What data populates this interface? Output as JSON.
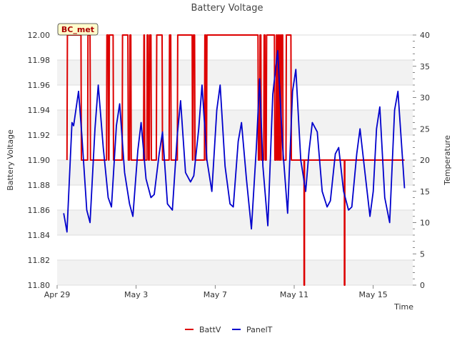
{
  "chart_data": {
    "type": "line",
    "title": "Battery Voltage",
    "xlabel": "Time",
    "ylabel": "Battery Voltage",
    "y2label": "Temperature",
    "site_tag": "BC_met",
    "x_axis": {
      "type": "date",
      "range": [
        "2024-04-29",
        "2024-05-17T00:00"
      ],
      "ticks": [
        {
          "value": "2024-04-29",
          "label": "Apr 29"
        },
        {
          "value": "2024-05-03",
          "label": "May 3"
        },
        {
          "value": "2024-05-07",
          "label": "May 7"
        },
        {
          "value": "2024-05-11",
          "label": "May 11"
        },
        {
          "value": "2024-05-15",
          "label": "May 15"
        }
      ]
    },
    "y_axis": {
      "range": [
        11.8,
        12.0
      ],
      "ticks": [
        "11.80",
        "11.82",
        "11.84",
        "11.86",
        "11.88",
        "11.90",
        "11.92",
        "11.94",
        "11.96",
        "11.98",
        "12.00"
      ]
    },
    "y2_axis": {
      "range": [
        0,
        40
      ],
      "ticks": [
        "0",
        "5",
        "10",
        "15",
        "20",
        "25",
        "30",
        "35",
        "40"
      ]
    },
    "grid": true,
    "legend": {
      "placement": "bottom-center"
    },
    "series": [
      {
        "name": "BattV",
        "axis": "left",
        "color": "#dd0000",
        "points": [
          [
            "2024-04-29T12:00",
            11.9
          ],
          [
            "2024-04-29T12:30",
            12.0
          ],
          [
            "2024-04-30T05:00",
            12.0
          ],
          [
            "2024-04-30T05:30",
            11.9
          ],
          [
            "2024-04-30T13:00",
            11.9
          ],
          [
            "2024-04-30T13:30",
            12.0
          ],
          [
            "2024-04-30T16:00",
            12.0
          ],
          [
            "2024-04-30T16:30",
            11.9
          ],
          [
            "2024-05-01T12:00",
            11.9
          ],
          [
            "2024-05-01T12:30",
            12.0
          ],
          [
            "2024-05-01T14:00",
            12.0
          ],
          [
            "2024-05-01T14:30",
            11.9
          ],
          [
            "2024-05-01T15:00",
            11.9
          ],
          [
            "2024-05-01T15:30",
            12.0
          ],
          [
            "2024-05-01T20:00",
            12.0
          ],
          [
            "2024-05-01T20:30",
            11.9
          ],
          [
            "2024-05-02T07:00",
            11.9
          ],
          [
            "2024-05-02T07:30",
            12.0
          ],
          [
            "2024-05-02T14:00",
            12.0
          ],
          [
            "2024-05-02T14:30",
            11.9
          ],
          [
            "2024-05-02T16:00",
            11.9
          ],
          [
            "2024-05-02T16:30",
            12.0
          ],
          [
            "2024-05-02T17:30",
            12.0
          ],
          [
            "2024-05-02T18:00",
            11.9
          ],
          [
            "2024-05-03T09:00",
            11.9
          ],
          [
            "2024-05-03T09:30",
            12.0
          ],
          [
            "2024-05-03T10:00",
            12.0
          ],
          [
            "2024-05-03T10:30",
            11.9
          ],
          [
            "2024-05-03T13:00",
            11.9
          ],
          [
            "2024-05-03T13:30",
            12.0
          ],
          [
            "2024-05-03T14:30",
            12.0
          ],
          [
            "2024-05-03T15:00",
            11.9
          ],
          [
            "2024-05-03T16:00",
            11.9
          ],
          [
            "2024-05-03T16:30",
            12.0
          ],
          [
            "2024-05-03T18:00",
            12.0
          ],
          [
            "2024-05-03T18:30",
            11.9
          ],
          [
            "2024-05-04T00:30",
            11.9
          ],
          [
            "2024-05-04T01:00",
            12.0
          ],
          [
            "2024-05-04T07:30",
            12.0
          ],
          [
            "2024-05-04T08:00",
            11.9
          ],
          [
            "2024-05-04T16:00",
            11.9
          ],
          [
            "2024-05-04T16:30",
            12.0
          ],
          [
            "2024-05-04T18:00",
            12.0
          ],
          [
            "2024-05-04T18:30",
            11.9
          ],
          [
            "2024-05-05T02:00",
            11.9
          ],
          [
            "2024-05-05T02:30",
            12.0
          ],
          [
            "2024-05-05T20:00",
            12.0
          ],
          [
            "2024-05-05T20:30",
            11.9
          ],
          [
            "2024-05-05T21:00",
            11.9
          ],
          [
            "2024-05-05T21:30",
            12.0
          ],
          [
            "2024-05-05T23:00",
            12.0
          ],
          [
            "2024-05-05T23:30",
            11.9
          ],
          [
            "2024-05-06T11:00",
            11.9
          ],
          [
            "2024-05-06T11:30",
            12.0
          ],
          [
            "2024-05-06T12:30",
            12.0
          ],
          [
            "2024-05-06T13:00",
            11.9
          ],
          [
            "2024-05-06T13:30",
            11.9
          ],
          [
            "2024-05-06T14:00",
            12.0
          ],
          [
            "2024-05-09T04:00",
            12.0
          ],
          [
            "2024-05-09T04:30",
            11.9
          ],
          [
            "2024-05-09T06:00",
            11.9
          ],
          [
            "2024-05-09T06:30",
            12.0
          ],
          [
            "2024-05-09T07:30",
            12.0
          ],
          [
            "2024-05-09T08:00",
            11.9
          ],
          [
            "2024-05-09T11:00",
            11.9
          ],
          [
            "2024-05-09T11:30",
            12.0
          ],
          [
            "2024-05-09T12:30",
            12.0
          ],
          [
            "2024-05-09T13:00",
            11.9
          ],
          [
            "2024-05-09T14:00",
            11.9
          ],
          [
            "2024-05-09T14:30",
            12.0
          ],
          [
            "2024-05-10T00:00",
            12.0
          ],
          [
            "2024-05-10T00:30",
            11.9
          ],
          [
            "2024-05-10T02:00",
            11.9
          ],
          [
            "2024-05-10T02:30",
            12.0
          ],
          [
            "2024-05-10T03:00",
            12.0
          ],
          [
            "2024-05-10T03:30",
            11.9
          ],
          [
            "2024-05-10T04:00",
            11.9
          ],
          [
            "2024-05-10T04:30",
            12.0
          ],
          [
            "2024-05-10T05:00",
            12.0
          ],
          [
            "2024-05-10T05:30",
            11.9
          ],
          [
            "2024-05-10T06:00",
            11.9
          ],
          [
            "2024-05-10T06:30",
            12.0
          ],
          [
            "2024-05-10T07:00",
            12.0
          ],
          [
            "2024-05-10T07:30",
            11.9
          ],
          [
            "2024-05-10T08:00",
            11.9
          ],
          [
            "2024-05-10T08:30",
            12.0
          ],
          [
            "2024-05-10T10:00",
            12.0
          ],
          [
            "2024-05-10T10:30",
            11.9
          ],
          [
            "2024-05-10T14:00",
            11.9
          ],
          [
            "2024-05-10T14:30",
            12.0
          ],
          [
            "2024-05-10T20:00",
            12.0
          ],
          [
            "2024-05-10T20:30",
            11.9
          ],
          [
            "2024-05-11T12:00",
            11.9
          ],
          [
            "2024-05-11T12:00",
            11.8
          ],
          [
            "2024-05-11T12:30",
            11.8
          ],
          [
            "2024-05-11T12:30",
            11.9
          ],
          [
            "2024-05-13T13:00",
            11.9
          ],
          [
            "2024-05-13T13:00",
            11.8
          ],
          [
            "2024-05-13T13:30",
            11.8
          ],
          [
            "2024-05-13T13:30",
            11.9
          ],
          [
            "2024-05-16T14:00",
            11.9
          ]
        ]
      },
      {
        "name": "PanelT",
        "axis": "right",
        "color": "#0000cc",
        "points": [
          [
            "2024-04-29T08:00",
            11.5
          ],
          [
            "2024-04-29T12:00",
            8.5
          ],
          [
            "2024-04-29T18:00",
            26
          ],
          [
            "2024-04-29T20:00",
            25.5
          ],
          [
            "2024-04-30T02:00",
            31
          ],
          [
            "2024-04-30T06:00",
            24
          ],
          [
            "2024-04-30T12:00",
            12
          ],
          [
            "2024-04-30T16:00",
            10
          ],
          [
            "2024-04-30T22:00",
            25
          ],
          [
            "2024-05-01T02:00",
            32
          ],
          [
            "2024-05-01T08:00",
            22
          ],
          [
            "2024-05-01T14:00",
            14
          ],
          [
            "2024-05-01T18:00",
            12.5
          ],
          [
            "2024-05-02T00:00",
            25.5
          ],
          [
            "2024-05-02T04:00",
            29
          ],
          [
            "2024-05-02T10:00",
            18
          ],
          [
            "2024-05-02T16:00",
            13
          ],
          [
            "2024-05-02T20:00",
            11
          ],
          [
            "2024-05-03T02:00",
            21.5
          ],
          [
            "2024-05-03T06:00",
            26
          ],
          [
            "2024-05-03T12:00",
            17
          ],
          [
            "2024-05-03T18:00",
            14
          ],
          [
            "2024-05-03T22:00",
            14.5
          ],
          [
            "2024-05-04T04:00",
            21
          ],
          [
            "2024-05-04T08:00",
            24.5
          ],
          [
            "2024-05-04T14:00",
            13
          ],
          [
            "2024-05-04T20:00",
            12
          ],
          [
            "2024-05-05T02:00",
            24
          ],
          [
            "2024-05-05T06:00",
            29.5
          ],
          [
            "2024-05-05T12:00",
            18
          ],
          [
            "2024-05-05T18:00",
            16.5
          ],
          [
            "2024-05-05T22:00",
            17.5
          ],
          [
            "2024-05-06T04:00",
            25
          ],
          [
            "2024-05-06T08:00",
            32
          ],
          [
            "2024-05-06T14:00",
            20
          ],
          [
            "2024-05-06T20:00",
            15
          ],
          [
            "2024-05-07T02:00",
            28
          ],
          [
            "2024-05-07T06:00",
            32
          ],
          [
            "2024-05-07T12:00",
            19
          ],
          [
            "2024-05-07T18:00",
            13
          ],
          [
            "2024-05-07T22:00",
            12.5
          ],
          [
            "2024-05-08T04:00",
            23
          ],
          [
            "2024-05-08T08:00",
            26
          ],
          [
            "2024-05-08T14:00",
            17
          ],
          [
            "2024-05-08T20:00",
            9
          ],
          [
            "2024-05-09T02:00",
            22
          ],
          [
            "2024-05-09T06:00",
            33
          ],
          [
            "2024-05-09T10:00",
            19
          ],
          [
            "2024-05-09T16:00",
            9.5
          ],
          [
            "2024-05-09T22:00",
            30.5
          ],
          [
            "2024-05-10T04:00",
            37.5
          ],
          [
            "2024-05-10T10:00",
            22
          ],
          [
            "2024-05-10T16:00",
            11.5
          ],
          [
            "2024-05-10T22:00",
            31
          ],
          [
            "2024-05-11T02:00",
            34.5
          ],
          [
            "2024-05-11T08:00",
            20
          ],
          [
            "2024-05-11T14:00",
            15
          ],
          [
            "2024-05-11T18:00",
            21.5
          ],
          [
            "2024-05-11T22:00",
            26
          ],
          [
            "2024-05-12T04:00",
            24.5
          ],
          [
            "2024-05-12T10:00",
            15
          ],
          [
            "2024-05-12T16:00",
            12.5
          ],
          [
            "2024-05-12T20:00",
            13.5
          ],
          [
            "2024-05-13T02:00",
            21
          ],
          [
            "2024-05-13T06:00",
            22
          ],
          [
            "2024-05-13T12:00",
            15
          ],
          [
            "2024-05-13T18:00",
            12
          ],
          [
            "2024-05-13T22:00",
            12.5
          ],
          [
            "2024-05-14T04:00",
            21
          ],
          [
            "2024-05-14T08:00",
            25
          ],
          [
            "2024-05-14T14:00",
            18
          ],
          [
            "2024-05-14T20:00",
            11
          ],
          [
            "2024-05-15T00:00",
            15
          ],
          [
            "2024-05-15T04:00",
            25
          ],
          [
            "2024-05-15T08:00",
            28.5
          ],
          [
            "2024-05-15T14:00",
            14
          ],
          [
            "2024-05-15T20:00",
            10
          ],
          [
            "2024-05-16T02:00",
            28
          ],
          [
            "2024-05-16T06:00",
            31
          ],
          [
            "2024-05-16T14:00",
            15.5
          ]
        ]
      }
    ]
  }
}
